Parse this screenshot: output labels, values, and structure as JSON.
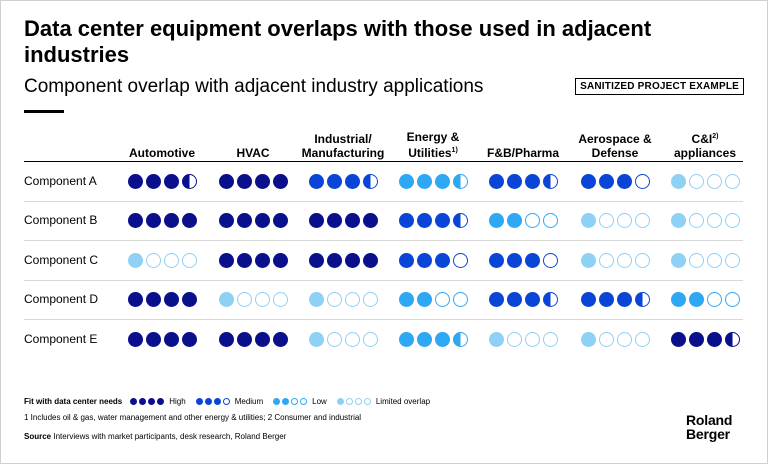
{
  "title": "Data center equipment overlaps with those used in adjacent industries",
  "subtitle": "Component overlap with adjacent industry applications",
  "badge": "SANITIZED PROJECT EXAMPLE",
  "colors": {
    "high": "#0a0f8c",
    "medium": "#0a45d8",
    "low": "#2ea7f5",
    "limited": "#8fd0f5"
  },
  "columns": [
    {
      "line1": "",
      "line2": "Automotive",
      "sup": ""
    },
    {
      "line1": "",
      "line2": "HVAC",
      "sup": ""
    },
    {
      "line1": "Industrial/",
      "line2": "Manufacturing",
      "sup": ""
    },
    {
      "line1": "Energy &",
      "line2": "Utilities",
      "sup": "1)"
    },
    {
      "line1": "",
      "line2": "F&B/Pharma",
      "sup": ""
    },
    {
      "line1": "Aerospace &",
      "line2": "Defense",
      "sup": ""
    },
    {
      "line1": "C&I",
      "line2": "appliances",
      "sup": "2)"
    }
  ],
  "rows": [
    {
      "label": "Component A",
      "cells": [
        {
          "level": "high",
          "filled": 3.5
        },
        {
          "level": "high",
          "filled": 4
        },
        {
          "level": "medium",
          "filled": 3.5
        },
        {
          "level": "low",
          "filled": 3.5
        },
        {
          "level": "medium",
          "filled": 3.5
        },
        {
          "level": "medium",
          "filled": 3
        },
        {
          "level": "limited",
          "filled": 1
        }
      ]
    },
    {
      "label": "Component B",
      "cells": [
        {
          "level": "high",
          "filled": 4
        },
        {
          "level": "high",
          "filled": 4
        },
        {
          "level": "high",
          "filled": 4
        },
        {
          "level": "medium",
          "filled": 3.5
        },
        {
          "level": "low",
          "filled": 2
        },
        {
          "level": "limited",
          "filled": 1
        },
        {
          "level": "limited",
          "filled": 1
        }
      ]
    },
    {
      "label": "Component C",
      "cells": [
        {
          "level": "limited",
          "filled": 1
        },
        {
          "level": "high",
          "filled": 4
        },
        {
          "level": "high",
          "filled": 4
        },
        {
          "level": "medium",
          "filled": 3
        },
        {
          "level": "medium",
          "filled": 3
        },
        {
          "level": "limited",
          "filled": 1
        },
        {
          "level": "limited",
          "filled": 1
        }
      ]
    },
    {
      "label": "Component D",
      "cells": [
        {
          "level": "high",
          "filled": 4
        },
        {
          "level": "limited",
          "filled": 1
        },
        {
          "level": "limited",
          "filled": 1
        },
        {
          "level": "low",
          "filled": 2
        },
        {
          "level": "medium",
          "filled": 3.5
        },
        {
          "level": "medium",
          "filled": 3.5
        },
        {
          "level": "low",
          "filled": 2
        }
      ]
    },
    {
      "label": "Component E",
      "cells": [
        {
          "level": "high",
          "filled": 4
        },
        {
          "level": "high",
          "filled": 4
        },
        {
          "level": "limited",
          "filled": 1
        },
        {
          "level": "low",
          "filled": 3.5
        },
        {
          "level": "limited",
          "filled": 1
        },
        {
          "level": "limited",
          "filled": 1
        },
        {
          "level": "high",
          "filled": 3.5
        }
      ]
    }
  ],
  "legend": {
    "label": "Fit with data center needs",
    "items": [
      {
        "level": "high",
        "filled": 4,
        "text": "High"
      },
      {
        "level": "medium",
        "filled": 3,
        "text": "Medium"
      },
      {
        "level": "low",
        "filled": 2,
        "text": "Low"
      },
      {
        "level": "limited",
        "filled": 1,
        "text": "Limited overlap"
      }
    ]
  },
  "footnotes": "1  Includes oil & gas, water management and other energy & utilities;  2  Consumer and industrial",
  "source": {
    "label": "Source",
    "text": " Interviews with market participants, desk research, Roland Berger"
  },
  "logo": {
    "line1": "Roland",
    "line2": "Berger"
  }
}
